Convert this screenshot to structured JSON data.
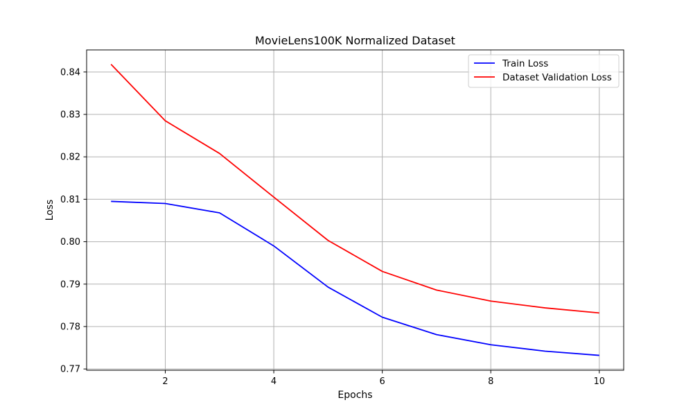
{
  "chart_data": {
    "type": "line",
    "title": "MovieLens100K Normalized Dataset",
    "xlabel": "Epochs",
    "ylabel": "Loss",
    "x": [
      1,
      2,
      3,
      4,
      5,
      6,
      7,
      8,
      9,
      10
    ],
    "xlim": [
      0.55,
      10.45
    ],
    "ylim": [
      0.7697,
      0.8452
    ],
    "x_ticks": [
      2,
      4,
      6,
      8,
      10
    ],
    "x_tick_labels": [
      "2",
      "4",
      "6",
      "8",
      "10"
    ],
    "y_ticks": [
      0.77,
      0.78,
      0.79,
      0.8,
      0.81,
      0.82,
      0.83,
      0.84
    ],
    "y_tick_labels": [
      "0.77",
      "0.78",
      "0.79",
      "0.80",
      "0.81",
      "0.82",
      "0.83",
      "0.84"
    ],
    "grid": true,
    "legend_position": "top-right",
    "series": [
      {
        "name": "Train Loss",
        "color": "#0000ff",
        "values": [
          0.8095,
          0.809,
          0.8068,
          0.799,
          0.7893,
          0.7822,
          0.7781,
          0.7757,
          0.7742,
          0.7732
        ]
      },
      {
        "name": "Dataset Validation Loss",
        "color": "#ff0000",
        "values": [
          0.8418,
          0.8285,
          0.8208,
          0.8105,
          0.8003,
          0.793,
          0.7886,
          0.786,
          0.7844,
          0.7832
        ]
      }
    ]
  }
}
